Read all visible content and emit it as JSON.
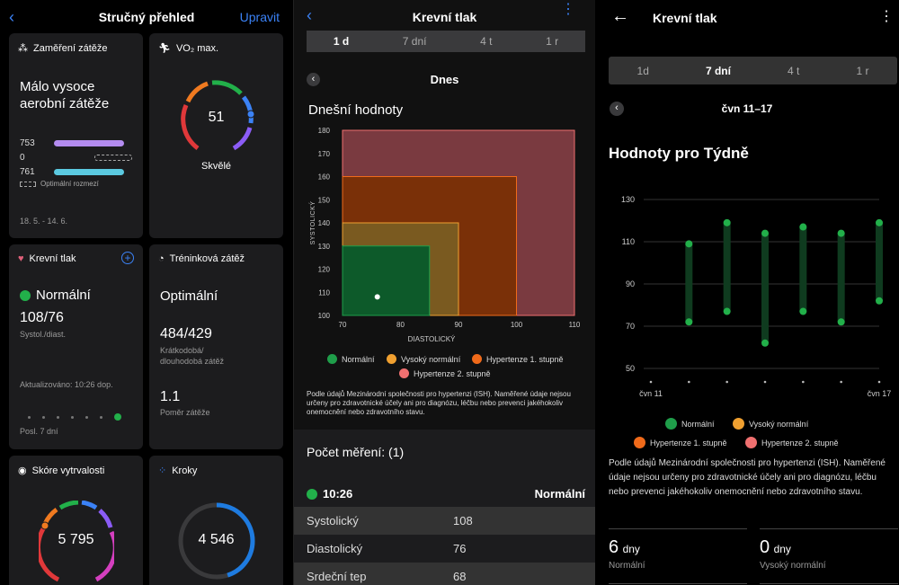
{
  "overview": {
    "title": "Stručný přehled",
    "edit": "Upravit",
    "load_focus": {
      "title": "Zaměření zátěže",
      "headline": "Málo vysoce aerobní zátěže",
      "v1": "753",
      "v2": "0",
      "v3": "761",
      "hint": "Optimální rozmezí",
      "dates": "18. 5. - 14. 6."
    },
    "vo2": {
      "title": "VO₂ max.",
      "value": "51",
      "status": "Skvělé"
    },
    "bp": {
      "title": "Krevní tlak",
      "status": "Normální",
      "value": "108/76",
      "unit": "Systol./diast.",
      "updated": "Aktualizováno: 10:26 dop.",
      "period": "Posl. 7 dní"
    },
    "training": {
      "title": "Tréninková zátěž",
      "status": "Optimální",
      "value": "484/429",
      "desc1": "Krátkodobá/",
      "desc2": "dlouhodobá zátěž",
      "ratio": "1.1",
      "ratio_label": "Poměr zátěže"
    },
    "endurance": {
      "title": "Skóre vytrvalosti",
      "value": "5 795"
    },
    "steps": {
      "title": "Kroky",
      "value": "4 546",
      "progress": 0.45
    }
  },
  "day": {
    "title": "Krevní tlak",
    "tabs": [
      "1 d",
      "7 dní",
      "4 t",
      "1 r"
    ],
    "active_tab": 0,
    "date_label": "Dnes",
    "section": "Dnešní hodnoty",
    "y_axis_label": "SYSTOLICKÝ",
    "x_axis_label": "DIASTOLICKÝ",
    "y_ticks": [
      "180",
      "170",
      "160",
      "150",
      "140",
      "130",
      "120",
      "110",
      "100"
    ],
    "x_ticks": [
      "70",
      "80",
      "90",
      "100",
      "110"
    ],
    "legend": [
      "Normální",
      "Vysoký normální",
      "Hypertenze 1. stupně",
      "Hypertenze 2. stupně"
    ],
    "colors": {
      "normal": "#1f9e4a",
      "high_normal": "#f0a030",
      "hyp1": "#f06a1a",
      "hyp2": "#f07070"
    },
    "disclaimer": "Podle údajů Mezinárodní společnosti pro hypertenzi (ISH). Naměřené údaje nejsou určeny pro zdravotnické účely ani pro diagnózu, léčbu nebo prevenci jakéhokoliv onemocnění nebo zdravotního stavu.",
    "count_label": "Počet měření: (1)",
    "reading": {
      "time": "10:26",
      "status": "Normální"
    },
    "rows": [
      {
        "label": "Systolický",
        "value": "108"
      },
      {
        "label": "Diastolický",
        "value": "76"
      },
      {
        "label": "Srdeční tep",
        "value": "68"
      }
    ]
  },
  "week": {
    "title": "Krevní tlak",
    "tabs": [
      "1d",
      "7 dní",
      "4 t",
      "1 r"
    ],
    "active_tab": 1,
    "date_label": "čvn 11–17",
    "section": "Hodnoty pro Týdně",
    "y_ticks": [
      "130",
      "110",
      "90",
      "70",
      "50"
    ],
    "x_start": "čvn 11",
    "x_end": "čvn 17",
    "legend": [
      "Normální",
      "Vysoký normální",
      "Hypertenze 1. stupně",
      "Hypertenze 2. stupně"
    ],
    "disclaimer": "Podle údajů Mezinárodní společnosti pro hypertenzi (ISH). Naměřené údaje nejsou určeny pro zdravotnické účely ani pro diagnózu, léčbu nebo prevenci jakéhokoliv onemocnění nebo zdravotního stavu.",
    "summary": [
      {
        "count": "6",
        "unit": "dny",
        "label": "Normální"
      },
      {
        "count": "0",
        "unit": "dny",
        "label": "Vysoký normální"
      }
    ]
  },
  "chart_data": [
    {
      "type": "scatter",
      "xlabel": "DIASTOLICKÝ",
      "ylabel": "SYSTOLICKÝ",
      "xlim": [
        70,
        110
      ],
      "ylim": [
        100,
        180
      ],
      "zones": [
        {
          "name": "Normální",
          "x_max": 85,
          "y_max": 130
        },
        {
          "name": "Vysoký normální",
          "x_max": 90,
          "y_max": 140
        },
        {
          "name": "Hypertenze 1. stupně",
          "x_max": 100,
          "y_max": 160
        },
        {
          "name": "Hypertenze 2. stupně",
          "x_max": 110,
          "y_max": 180
        }
      ],
      "points": [
        {
          "x": 76,
          "y": 108
        }
      ]
    },
    {
      "type": "range",
      "ylim": [
        50,
        130
      ],
      "x": [
        "čvn 11",
        "",
        "",
        "",
        "",
        "",
        "čvn 17"
      ],
      "series": [
        {
          "values": [
            [
              72,
              109
            ],
            [
              77,
              119
            ],
            [
              62,
              114
            ],
            [
              77,
              117
            ],
            [
              72,
              114
            ],
            [
              82,
              119
            ]
          ],
          "days": [
            1,
            2,
            3,
            4,
            5,
            6
          ]
        }
      ]
    }
  ]
}
